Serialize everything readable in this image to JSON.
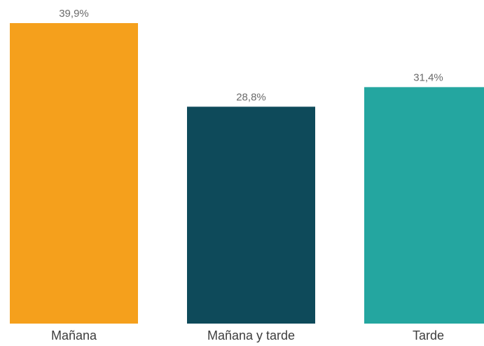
{
  "chart_data": {
    "type": "bar",
    "title": "",
    "xlabel": "",
    "ylabel": "",
    "categories": [
      "Mañana",
      "Mañana y tarde",
      "Tarde"
    ],
    "values": [
      39.9,
      28.8,
      31.4
    ],
    "value_labels": [
      "39,9%",
      "28,8%",
      "31,4%"
    ],
    "colors": [
      "#f5a01c",
      "#0e4a5a",
      "#24a6a0"
    ],
    "ylim": [
      0,
      39.9
    ],
    "grid": false,
    "legend": "none"
  }
}
